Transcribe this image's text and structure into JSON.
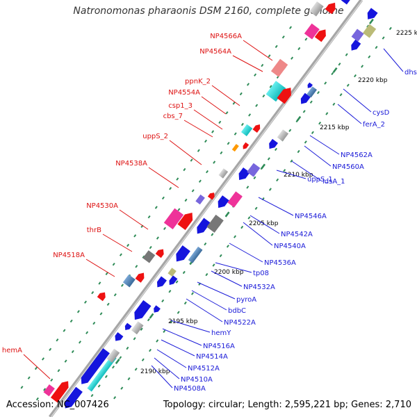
{
  "title": "Natronomonas pharaonis DSM 2160, complete genome",
  "accession": "Accession: NC_007426",
  "topology": "Topology: circular; Length: 2,595,221 bp; Genes: 2,710",
  "colors": {
    "backbone": "#a6a6a6",
    "label_upper": "#dd1111",
    "label_lower": "#1a1ad8",
    "tick_major": "#2e8b57",
    "tick_minor": "#2e8b57",
    "red": "#ee1111",
    "blue": "#1515dd",
    "cyan": "#22dddd",
    "pink": "#ee3399",
    "violet": "#7766dd",
    "gray": "#bbbbbb",
    "darkgray": "#777777",
    "steel": "#5588bb",
    "olive": "#bbbb77",
    "orange": "#ff9900",
    "rose": "#ee8888"
  },
  "scale_labels": [
    "2190 kbp",
    "2195 kbp",
    "2200 kbp",
    "2205 kbp",
    "2210 kbp",
    "2215 kbp",
    "2220 kbp",
    "2225 kbp"
  ],
  "upper_labels": [
    "hemA",
    "NP4518A",
    "thrB",
    "NP4530A",
    "NP4538A",
    "uppS_2",
    "cbs_7",
    "csp1_3",
    "NP4554A",
    "ppnK_2",
    "NP4564A",
    "NP4566A"
  ],
  "lower_labels": [
    "NP4508A",
    "NP4510A",
    "NP4512A",
    "NP4514A",
    "NP4516A",
    "hemY",
    "NP4522A",
    "bdbC",
    "pyroA",
    "NP4532A",
    "tp08",
    "NP4536A",
    "NP4540A",
    "NP4542A",
    "NP4546A",
    "uppS_1",
    "idsA_1",
    "NP4560A",
    "NP4562A",
    "ferA_2",
    "cysD",
    "dhs"
  ]
}
